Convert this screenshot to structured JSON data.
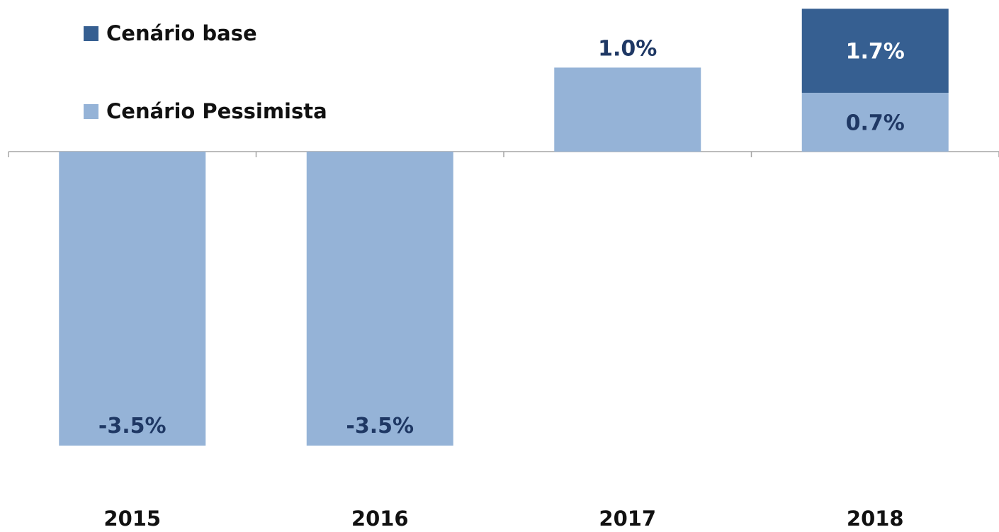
{
  "colors": {
    "base": "#365f91",
    "pessimista": "#95b3d7",
    "label_dark": "#1f3864",
    "label_light": "#ffffff",
    "axis": "#a6a6a6",
    "text": "#111111"
  },
  "legend": {
    "base": "Cenário base",
    "pessimista": "Cenário Pessimista"
  },
  "chart_data": {
    "type": "bar",
    "stacked": true,
    "categories": [
      "2015",
      "2016",
      "2017",
      "2018"
    ],
    "series": [
      {
        "name": "Cenário Pessimista",
        "values": [
          -3.5,
          -3.5,
          1.0,
          0.7
        ],
        "labels": [
          "-3.5%",
          "-3.5%",
          "1.0%",
          "0.7%"
        ]
      },
      {
        "name": "Cenário base",
        "values": [
          0,
          0,
          0,
          1.0
        ],
        "labels": [
          "",
          "",
          "",
          "1.7%"
        ]
      }
    ],
    "ylim": [
      -3.5,
      1.7
    ],
    "grid": false,
    "legend_position": "top-left"
  }
}
